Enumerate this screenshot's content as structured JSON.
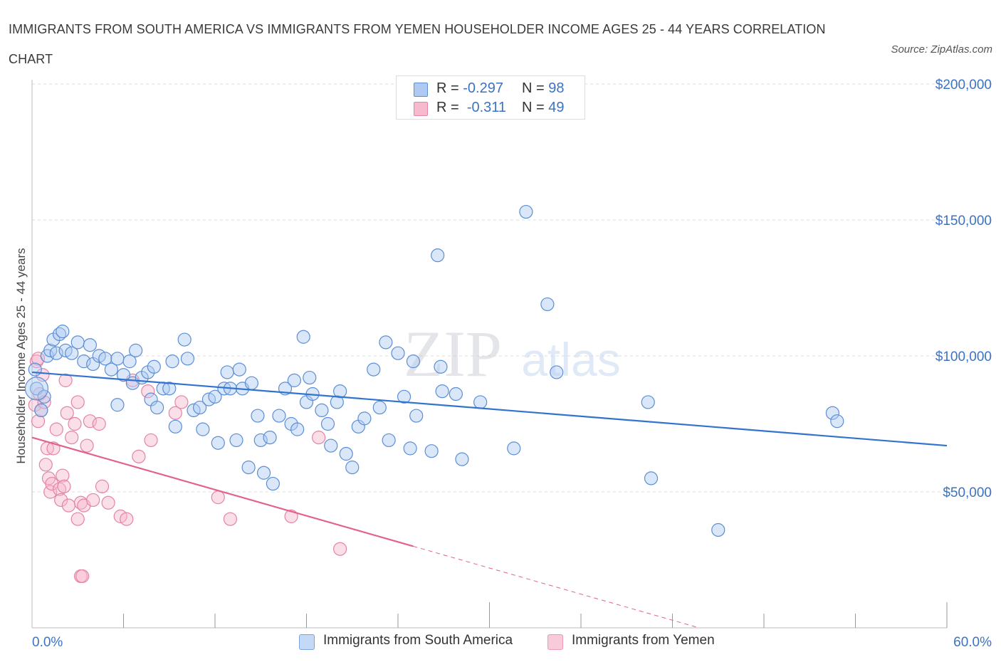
{
  "header": {
    "title": "IMMIGRANTS FROM SOUTH AMERICA VS IMMIGRANTS FROM YEMEN HOUSEHOLDER INCOME AGES 25 - 44 YEARS CORRELATION CHART",
    "source": "Source: ZipAtlas.com"
  },
  "watermark": {
    "zip": "ZIP",
    "atlas": "atlas"
  },
  "legend": {
    "rows": [
      {
        "r_label": "R =",
        "r_value": "-0.297",
        "n_label": "N =",
        "n_value": "98"
      },
      {
        "r_label": "R =",
        "r_value": "-0.311",
        "n_label": "N =",
        "n_value": "49"
      }
    ]
  },
  "colors": {
    "south_america_fill": "#aec9f2",
    "south_america_stroke": "#5b8ed6",
    "south_america_line": "#3273d0",
    "yemen_fill": "#f7b9cd",
    "yemen_stroke": "#e483a5",
    "yemen_line": "#e0628f",
    "axis_label": "#3b73c4",
    "grid": "#dddddd"
  },
  "chart_data": {
    "type": "scatter",
    "title": "IMMIGRANTS FROM SOUTH AMERICA VS IMMIGRANTS FROM YEMEN HOUSEHOLDER INCOME AGES 25 - 44 YEARS CORRELATION CHART",
    "xlabel": "",
    "ylabel": "Householder Income Ages 25 - 44 years",
    "xlim": [
      0,
      60
    ],
    "ylim": [
      0,
      200000
    ],
    "x_tick_labels": [
      "0.0%",
      "60.0%"
    ],
    "y_ticks": [
      50000,
      100000,
      150000,
      200000
    ],
    "y_tick_labels": [
      "$50,000",
      "$100,000",
      "$150,000",
      "$200,000"
    ],
    "grid": true,
    "legend_position": "top-center",
    "series": [
      {
        "name": "Immigrants from South America",
        "trend": {
          "x": [
            0,
            60
          ],
          "y": [
            94000,
            67000
          ],
          "dashed_from_x": null
        },
        "points": [
          [
            0.3,
            88000
          ],
          [
            0.6,
            80000
          ],
          [
            0.8,
            85000
          ],
          [
            1.0,
            100000
          ],
          [
            1.2,
            102000
          ],
          [
            1.4,
            106000
          ],
          [
            1.6,
            101000
          ],
          [
            1.8,
            108000
          ],
          [
            2.0,
            109000
          ],
          [
            2.2,
            102000
          ],
          [
            2.6,
            101000
          ],
          [
            3.0,
            105000
          ],
          [
            3.4,
            98000
          ],
          [
            3.8,
            104000
          ],
          [
            4.0,
            97000
          ],
          [
            4.4,
            100000
          ],
          [
            4.8,
            99000
          ],
          [
            5.2,
            95000
          ],
          [
            5.6,
            99000
          ],
          [
            5.6,
            82000
          ],
          [
            6.0,
            93000
          ],
          [
            6.4,
            98000
          ],
          [
            6.6,
            90000
          ],
          [
            6.8,
            102000
          ],
          [
            7.2,
            92000
          ],
          [
            7.6,
            94000
          ],
          [
            7.8,
            84000
          ],
          [
            8.0,
            96000
          ],
          [
            8.2,
            81000
          ],
          [
            8.6,
            88000
          ],
          [
            9.0,
            88000
          ],
          [
            9.2,
            98000
          ],
          [
            9.4,
            74000
          ],
          [
            10.0,
            106000
          ],
          [
            10.2,
            99000
          ],
          [
            10.6,
            80000
          ],
          [
            11.0,
            81000
          ],
          [
            11.2,
            73000
          ],
          [
            11.6,
            84000
          ],
          [
            12.0,
            85000
          ],
          [
            12.2,
            68000
          ],
          [
            12.6,
            88000
          ],
          [
            12.8,
            94000
          ],
          [
            13.0,
            88000
          ],
          [
            13.4,
            69000
          ],
          [
            13.6,
            95000
          ],
          [
            13.8,
            88000
          ],
          [
            14.2,
            59000
          ],
          [
            14.4,
            90000
          ],
          [
            14.8,
            78000
          ],
          [
            15.0,
            69000
          ],
          [
            15.2,
            57000
          ],
          [
            15.6,
            70000
          ],
          [
            15.8,
            53000
          ],
          [
            16.2,
            78000
          ],
          [
            16.6,
            88000
          ],
          [
            17.0,
            75000
          ],
          [
            17.2,
            91000
          ],
          [
            17.4,
            73000
          ],
          [
            17.8,
            107000
          ],
          [
            18.0,
            83000
          ],
          [
            18.2,
            92000
          ],
          [
            18.4,
            86000
          ],
          [
            19.0,
            80000
          ],
          [
            19.4,
            75000
          ],
          [
            19.6,
            67000
          ],
          [
            20.0,
            83000
          ],
          [
            20.2,
            87000
          ],
          [
            20.6,
            64000
          ],
          [
            21.0,
            59000
          ],
          [
            21.4,
            74000
          ],
          [
            21.8,
            77000
          ],
          [
            22.4,
            95000
          ],
          [
            22.8,
            81000
          ],
          [
            23.2,
            105000
          ],
          [
            23.4,
            69000
          ],
          [
            24.0,
            101000
          ],
          [
            24.4,
            85000
          ],
          [
            24.8,
            66000
          ],
          [
            25.0,
            98000
          ],
          [
            25.2,
            78000
          ],
          [
            26.2,
            65000
          ],
          [
            26.8,
            96000
          ],
          [
            26.6,
            137000
          ],
          [
            26.9,
            87000
          ],
          [
            27.8,
            86000
          ],
          [
            28.2,
            62000
          ],
          [
            29.4,
            83000
          ],
          [
            31.6,
            66000
          ],
          [
            32.4,
            153000
          ],
          [
            33.8,
            119000
          ],
          [
            34.4,
            94000
          ],
          [
            40.4,
            83000
          ],
          [
            40.6,
            55000
          ],
          [
            45.0,
            36000
          ],
          [
            52.5,
            79000
          ],
          [
            52.8,
            76000
          ],
          [
            0.2,
            95000
          ]
        ]
      },
      {
        "name": "Immigrants from Yemen",
        "trend": {
          "x": [
            0,
            60
          ],
          "y": [
            70000,
            -26000
          ],
          "dashed_from_x": 25
        },
        "points": [
          [
            0.2,
            82000
          ],
          [
            0.3,
            98000
          ],
          [
            0.4,
            76000
          ],
          [
            0.5,
            86000
          ],
          [
            0.6,
            80000
          ],
          [
            0.7,
            93000
          ],
          [
            0.8,
            83000
          ],
          [
            0.9,
            60000
          ],
          [
            1.0,
            66000
          ],
          [
            1.1,
            55000
          ],
          [
            1.2,
            50000
          ],
          [
            1.3,
            53000
          ],
          [
            1.4,
            66000
          ],
          [
            1.6,
            73000
          ],
          [
            1.8,
            51000
          ],
          [
            1.9,
            47000
          ],
          [
            2.0,
            56000
          ],
          [
            2.1,
            52000
          ],
          [
            2.2,
            91000
          ],
          [
            2.3,
            79000
          ],
          [
            2.4,
            45000
          ],
          [
            2.6,
            70000
          ],
          [
            2.8,
            75000
          ],
          [
            3.0,
            83000
          ],
          [
            3.0,
            40000
          ],
          [
            3.2,
            46000
          ],
          [
            3.4,
            45000
          ],
          [
            3.6,
            67000
          ],
          [
            3.8,
            76000
          ],
          [
            4.0,
            47000
          ],
          [
            4.4,
            75000
          ],
          [
            4.6,
            52000
          ],
          [
            5.0,
            46000
          ],
          [
            5.8,
            41000
          ],
          [
            6.2,
            40000
          ],
          [
            6.6,
            91000
          ],
          [
            7.0,
            63000
          ],
          [
            7.6,
            87000
          ],
          [
            7.8,
            69000
          ],
          [
            9.4,
            79000
          ],
          [
            9.8,
            83000
          ],
          [
            12.2,
            48000
          ],
          [
            13.0,
            40000
          ],
          [
            17.0,
            41000
          ],
          [
            18.8,
            70000
          ],
          [
            20.2,
            29000
          ],
          [
            3.2,
            19000
          ],
          [
            3.3,
            19000
          ],
          [
            0.4,
            99000
          ]
        ]
      }
    ]
  },
  "axis": {
    "x_left": "0.0%",
    "x_right": "60.0%",
    "y_ticks": [
      "$200,000",
      "$150,000",
      "$100,000",
      "$50,000"
    ]
  },
  "bottom_legend": {
    "south_america": "Immigrants from South America",
    "yemen": "Immigrants from Yemen"
  }
}
